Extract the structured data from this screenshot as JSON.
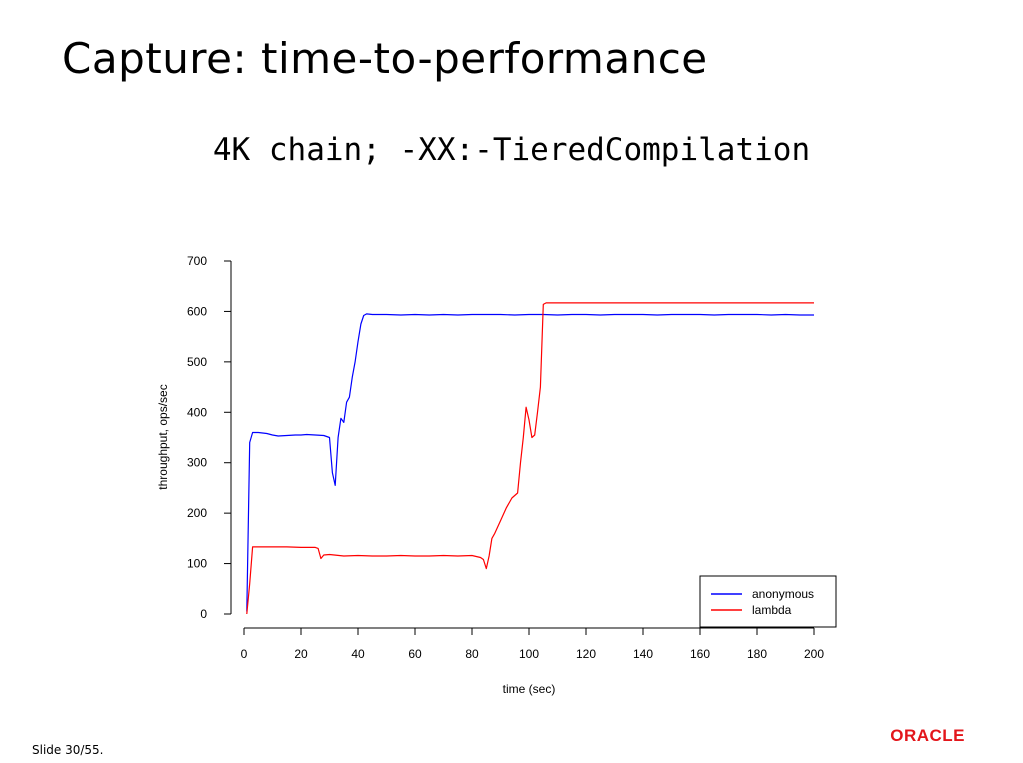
{
  "slide": {
    "title": "Capture: time-to-performance",
    "footer": "Slide 30/55.",
    "logo_text": "ORACLE"
  },
  "colors": {
    "anonymous": "#0000ff",
    "lambda": "#ff0000",
    "logo": "#e3161b"
  },
  "chart_data": {
    "type": "line",
    "title": "4K chain; -XX:-TieredCompilation",
    "xlabel": "time (sec)",
    "ylabel": "throughput, ops/sec",
    "xlim": [
      0,
      200
    ],
    "ylim": [
      0,
      700
    ],
    "xticks": [
      0,
      20,
      40,
      60,
      80,
      100,
      120,
      140,
      160,
      180,
      200
    ],
    "yticks": [
      0,
      100,
      200,
      300,
      400,
      500,
      600,
      700
    ],
    "grid": false,
    "legend": "bottom-right",
    "series": [
      {
        "name": "anonymous",
        "x": [
          1,
          2,
          3,
          5,
          8,
          10,
          12,
          15,
          18,
          20,
          22,
          25,
          28,
          30,
          31,
          32,
          33,
          34,
          35,
          36,
          37,
          38,
          39,
          40,
          41,
          42,
          43,
          45,
          50,
          55,
          60,
          65,
          70,
          75,
          80,
          85,
          90,
          95,
          100,
          105,
          110,
          115,
          120,
          125,
          130,
          135,
          140,
          145,
          150,
          155,
          160,
          165,
          170,
          175,
          180,
          185,
          190,
          195,
          200
        ],
        "y": [
          5,
          340,
          360,
          360,
          358,
          355,
          353,
          354,
          355,
          355,
          356,
          355,
          354,
          350,
          280,
          255,
          350,
          388,
          380,
          420,
          430,
          470,
          500,
          540,
          575,
          592,
          595,
          594,
          594,
          593,
          594,
          593,
          594,
          593,
          594,
          594,
          594,
          593,
          594,
          594,
          593,
          594,
          594,
          593,
          594,
          594,
          594,
          593,
          594,
          594,
          594,
          593,
          594,
          594,
          594,
          593,
          594,
          593,
          593
        ]
      },
      {
        "name": "lambda",
        "x": [
          1,
          2,
          3,
          5,
          10,
          15,
          20,
          25,
          26,
          27,
          28,
          30,
          35,
          40,
          45,
          50,
          55,
          60,
          65,
          70,
          75,
          80,
          83,
          84,
          85,
          86,
          87,
          88,
          90,
          92,
          94,
          96,
          97,
          98,
          99,
          100,
          101,
          102,
          103,
          104,
          105,
          106,
          110,
          120,
          130,
          140,
          150,
          160,
          170,
          180,
          190,
          200
        ],
        "y": [
          0,
          60,
          133,
          133,
          133,
          133,
          132,
          132,
          130,
          110,
          117,
          118,
          115,
          116,
          115,
          115,
          116,
          115,
          115,
          116,
          115,
          116,
          112,
          108,
          90,
          115,
          150,
          160,
          185,
          210,
          230,
          240,
          300,
          350,
          410,
          385,
          350,
          355,
          400,
          450,
          614,
          617,
          617,
          617,
          617,
          617,
          617,
          617,
          617,
          617,
          617,
          617
        ]
      }
    ]
  }
}
